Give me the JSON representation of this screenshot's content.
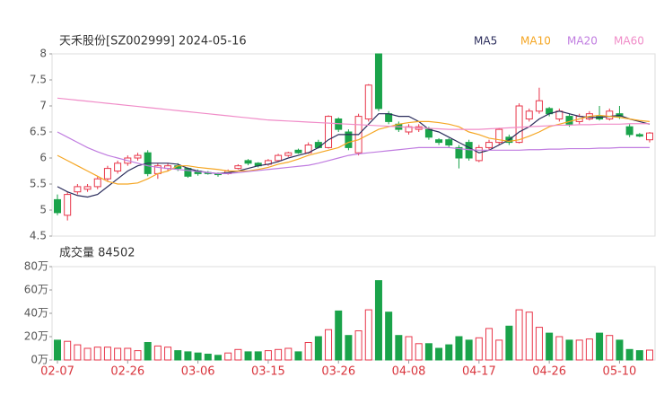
{
  "chart_data": [
    {
      "type": "candlestick",
      "title": "天禾股份[SZ002999] 2024-05-16",
      "open": [
        5.2,
        4.9,
        5.35,
        5.4,
        5.45,
        5.6,
        5.75,
        5.9,
        6.0,
        6.1,
        5.7,
        5.8,
        5.85,
        5.8,
        5.75,
        5.72,
        5.7,
        5.7,
        5.8,
        5.95,
        5.9,
        5.88,
        5.95,
        6.05,
        6.15,
        6.1,
        6.3,
        6.2,
        6.75,
        6.5,
        6.1,
        6.75,
        8.0,
        6.85,
        6.65,
        6.5,
        6.55,
        6.55,
        6.35,
        6.35,
        6.2,
        6.3,
        5.95,
        6.2,
        6.3,
        6.4,
        6.3,
        6.75,
        6.9,
        6.95,
        6.75,
        6.8,
        6.7,
        6.75,
        6.8,
        6.75,
        6.85,
        6.6,
        6.45,
        6.35
      ],
      "high": [
        5.3,
        5.35,
        5.5,
        5.5,
        5.65,
        5.85,
        5.95,
        6.05,
        6.1,
        6.15,
        5.9,
        5.9,
        5.9,
        5.82,
        5.78,
        5.75,
        5.72,
        5.78,
        5.88,
        5.98,
        5.92,
        5.98,
        6.08,
        6.12,
        6.18,
        6.3,
        6.35,
        6.82,
        6.78,
        6.55,
        6.85,
        7.42,
        8.0,
        6.9,
        6.7,
        6.65,
        6.65,
        6.6,
        6.38,
        6.38,
        6.25,
        6.35,
        6.25,
        6.35,
        6.58,
        6.45,
        7.05,
        6.95,
        7.35,
        6.98,
        6.95,
        6.85,
        6.85,
        6.9,
        7.0,
        6.95,
        7.0,
        6.65,
        6.48,
        6.5
      ],
      "low": [
        4.9,
        4.8,
        5.3,
        5.35,
        5.4,
        5.55,
        5.7,
        5.85,
        5.95,
        5.65,
        5.6,
        5.75,
        5.75,
        5.62,
        5.66,
        5.68,
        5.64,
        5.68,
        5.78,
        5.86,
        5.82,
        5.85,
        5.93,
        6.02,
        6.08,
        6.08,
        6.18,
        6.18,
        6.5,
        6.15,
        6.05,
        6.7,
        6.9,
        6.65,
        6.5,
        6.45,
        6.5,
        6.35,
        6.25,
        6.2,
        5.8,
        5.95,
        5.92,
        6.15,
        6.25,
        6.25,
        6.28,
        6.7,
        6.85,
        6.8,
        6.7,
        6.6,
        6.65,
        6.72,
        6.72,
        6.72,
        6.75,
        6.4,
        6.4,
        6.3
      ],
      "close": [
        4.95,
        5.3,
        5.45,
        5.45,
        5.6,
        5.8,
        5.9,
        6.0,
        6.05,
        5.7,
        5.85,
        5.85,
        5.8,
        5.65,
        5.7,
        5.7,
        5.68,
        5.75,
        5.85,
        5.9,
        5.85,
        5.95,
        6.05,
        6.1,
        6.1,
        6.25,
        6.2,
        6.8,
        6.55,
        6.2,
        6.8,
        7.4,
        6.95,
        6.7,
        6.55,
        6.6,
        6.6,
        6.4,
        6.3,
        6.25,
        6.0,
        6.0,
        6.2,
        6.3,
        6.55,
        6.3,
        7.0,
        6.9,
        7.1,
        6.85,
        6.9,
        6.65,
        6.8,
        6.85,
        6.75,
        6.9,
        6.8,
        6.45,
        6.42,
        6.48
      ],
      "up_color": "#e8364a",
      "down_color": "#1aa34a",
      "series": [
        {
          "name": "MA5",
          "color": "#2b2d5c",
          "values": [
            5.45,
            5.35,
            5.28,
            5.25,
            5.3,
            5.45,
            5.6,
            5.75,
            5.85,
            5.9,
            5.9,
            5.9,
            5.88,
            5.8,
            5.75,
            5.72,
            5.7,
            5.72,
            5.75,
            5.8,
            5.85,
            5.88,
            5.93,
            6.0,
            6.05,
            6.1,
            6.2,
            6.35,
            6.45,
            6.45,
            6.45,
            6.65,
            6.85,
            6.85,
            6.8,
            6.8,
            6.7,
            6.55,
            6.5,
            6.4,
            6.3,
            6.2,
            6.1,
            6.15,
            6.25,
            6.35,
            6.5,
            6.6,
            6.75,
            6.85,
            6.9,
            6.85,
            6.8,
            6.78,
            6.78,
            6.8,
            6.82,
            6.75,
            6.7,
            6.65
          ]
        },
        {
          "name": "MA10",
          "color": "#f5a623",
          "values": [
            6.05,
            5.95,
            5.85,
            5.75,
            5.65,
            5.55,
            5.5,
            5.5,
            5.52,
            5.6,
            5.7,
            5.75,
            5.85,
            5.85,
            5.82,
            5.8,
            5.78,
            5.75,
            5.75,
            5.75,
            5.78,
            5.82,
            5.88,
            5.92,
            5.98,
            6.05,
            6.1,
            6.15,
            6.2,
            6.3,
            6.35,
            6.45,
            6.55,
            6.6,
            6.65,
            6.68,
            6.7,
            6.7,
            6.68,
            6.65,
            6.6,
            6.5,
            6.45,
            6.38,
            6.35,
            6.32,
            6.35,
            6.42,
            6.5,
            6.6,
            6.65,
            6.7,
            6.75,
            6.8,
            6.82,
            6.8,
            6.78,
            6.75,
            6.72,
            6.7
          ]
        },
        {
          "name": "MA20",
          "color": "#c07ce0",
          "values": [
            6.5,
            6.4,
            6.3,
            6.2,
            6.12,
            6.05,
            6.0,
            5.95,
            5.9,
            5.85,
            5.82,
            5.8,
            5.78,
            5.76,
            5.74,
            5.72,
            5.7,
            5.7,
            5.72,
            5.74,
            5.76,
            5.78,
            5.8,
            5.82,
            5.84,
            5.86,
            5.9,
            5.95,
            6.0,
            6.05,
            6.08,
            6.1,
            6.12,
            6.14,
            6.16,
            6.18,
            6.2,
            6.2,
            6.2,
            6.2,
            6.18,
            6.16,
            6.15,
            6.15,
            6.15,
            6.15,
            6.15,
            6.16,
            6.16,
            6.17,
            6.17,
            6.18,
            6.18,
            6.18,
            6.19,
            6.19,
            6.2,
            6.2,
            6.2,
            6.2
          ]
        },
        {
          "name": "MA60",
          "color": "#f08cc8",
          "values": [
            7.15,
            7.13,
            7.11,
            7.09,
            7.07,
            7.05,
            7.03,
            7.01,
            6.99,
            6.97,
            6.95,
            6.93,
            6.91,
            6.89,
            6.87,
            6.85,
            6.83,
            6.81,
            6.79,
            6.77,
            6.75,
            6.73,
            6.72,
            6.71,
            6.7,
            6.69,
            6.68,
            6.67,
            6.66,
            6.65,
            6.64,
            6.63,
            6.62,
            6.61,
            6.6,
            6.59,
            6.58,
            6.57,
            6.56,
            6.55,
            6.55,
            6.55,
            6.55,
            6.56,
            6.57,
            6.58,
            6.59,
            6.6,
            6.61,
            6.62,
            6.63,
            6.63,
            6.64,
            6.64,
            6.65,
            6.65,
            6.65,
            6.66,
            6.66,
            6.66
          ]
        }
      ],
      "ylim": [
        4.5,
        8
      ],
      "yticks": [
        4.5,
        5,
        5.5,
        6,
        6.5,
        7,
        7.5,
        8
      ]
    },
    {
      "type": "bar",
      "title": "成交量 84502",
      "categories": [
        "02-07",
        null,
        null,
        null,
        null,
        null,
        null,
        "02-26",
        null,
        null,
        null,
        null,
        null,
        null,
        "03-06",
        null,
        null,
        null,
        null,
        null,
        null,
        "03-15",
        null,
        null,
        null,
        null,
        null,
        null,
        "03-26",
        null,
        null,
        null,
        null,
        null,
        null,
        "04-08",
        null,
        null,
        null,
        null,
        null,
        null,
        "04-17",
        null,
        null,
        null,
        null,
        null,
        null,
        "04-26",
        null,
        null,
        null,
        null,
        null,
        null,
        "05-10",
        null,
        null,
        null
      ],
      "values": [
        17,
        16,
        13,
        10,
        11,
        11,
        10,
        10,
        8,
        15,
        12,
        11,
        8,
        7,
        6,
        5,
        4,
        6,
        9,
        7,
        7,
        8,
        9,
        10,
        7,
        15,
        20,
        26,
        42,
        21,
        25,
        43,
        68,
        41,
        21,
        20,
        14,
        14,
        10,
        13,
        20,
        17,
        19,
        27,
        17,
        29,
        43,
        41,
        28,
        23,
        20,
        17,
        17,
        18,
        23,
        21,
        17,
        9,
        8,
        8.45
      ],
      "ylim": [
        0,
        80
      ],
      "yticks": [
        {
          "value": 0,
          "label": "0万"
        },
        {
          "value": 20,
          "label": "20万"
        },
        {
          "value": 40,
          "label": "40万"
        },
        {
          "value": 60,
          "label": "60万"
        },
        {
          "value": 80,
          "label": "80万"
        }
      ]
    }
  ]
}
